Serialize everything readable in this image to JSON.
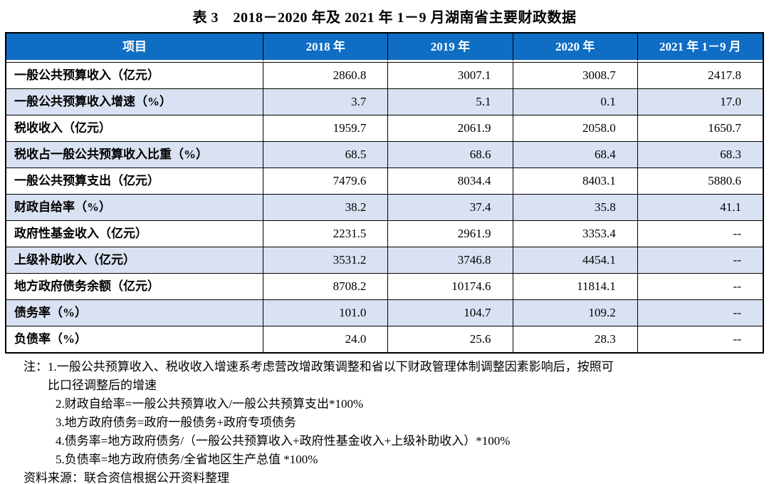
{
  "title": "表 3　2018－2020 年及 2021 年 1－9 月湖南省主要财政数据",
  "table": {
    "columns": [
      "项目",
      "2018 年",
      "2019 年",
      "2020 年",
      "2021 年 1－9 月"
    ],
    "rows": [
      {
        "label": "一般公共预算收入（亿元）",
        "values": [
          "2860.8",
          "3007.1",
          "3008.7",
          "2417.8"
        ]
      },
      {
        "label": "一般公共预算收入增速（%）",
        "values": [
          "3.7",
          "5.1",
          "0.1",
          "17.0"
        ]
      },
      {
        "label": "税收收入（亿元）",
        "values": [
          "1959.7",
          "2061.9",
          "2058.0",
          "1650.7"
        ]
      },
      {
        "label": "税收占一般公共预算收入比重（%）",
        "values": [
          "68.5",
          "68.6",
          "68.4",
          "68.3"
        ]
      },
      {
        "label": "一般公共预算支出（亿元）",
        "values": [
          "7479.6",
          "8034.4",
          "8403.1",
          "5880.6"
        ]
      },
      {
        "label": "财政自给率（%）",
        "values": [
          "38.2",
          "37.4",
          "35.8",
          "41.1"
        ]
      },
      {
        "label": "政府性基金收入（亿元）",
        "values": [
          "2231.5",
          "2961.9",
          "3353.4",
          "--"
        ]
      },
      {
        "label": "上级补助收入（亿元）",
        "values": [
          "3531.2",
          "3746.8",
          "4454.1",
          "--"
        ]
      },
      {
        "label": "地方政府债务余额（亿元）",
        "values": [
          "8708.2",
          "10174.6",
          "11814.1",
          "--"
        ]
      },
      {
        "label": "债务率（%）",
        "values": [
          "101.0",
          "104.7",
          "109.2",
          "--"
        ]
      },
      {
        "label": "负债率（%）",
        "values": [
          "24.0",
          "25.6",
          "28.3",
          "--"
        ]
      }
    ]
  },
  "notes": {
    "prefix": "注：",
    "first_item": "1.一般公共预算收入、税收收入增速系考虑营改增政策调整和省以下财政管理体制调整因素影响后，按照可\n比口径调整后的增速",
    "items": [
      "2.财政自给率=一般公共预算收入/一般公共预算支出*100%",
      "3.地方政府债务=政府一般债务+政府专项债务",
      "4.债务率=地方政府债务/（一般公共预算收入+政府性基金收入+上级补助收入）*100%",
      "5.负债率=地方政府债务/全省地区生产总值 *100%"
    ],
    "source": "资料来源：联合资信根据公开资料整理"
  },
  "colors": {
    "header_bg": "#0f6dc4",
    "header_text": "#ffffff",
    "row_alt_bg": "#d9e2f2",
    "border": "#000000",
    "text": "#000000"
  }
}
